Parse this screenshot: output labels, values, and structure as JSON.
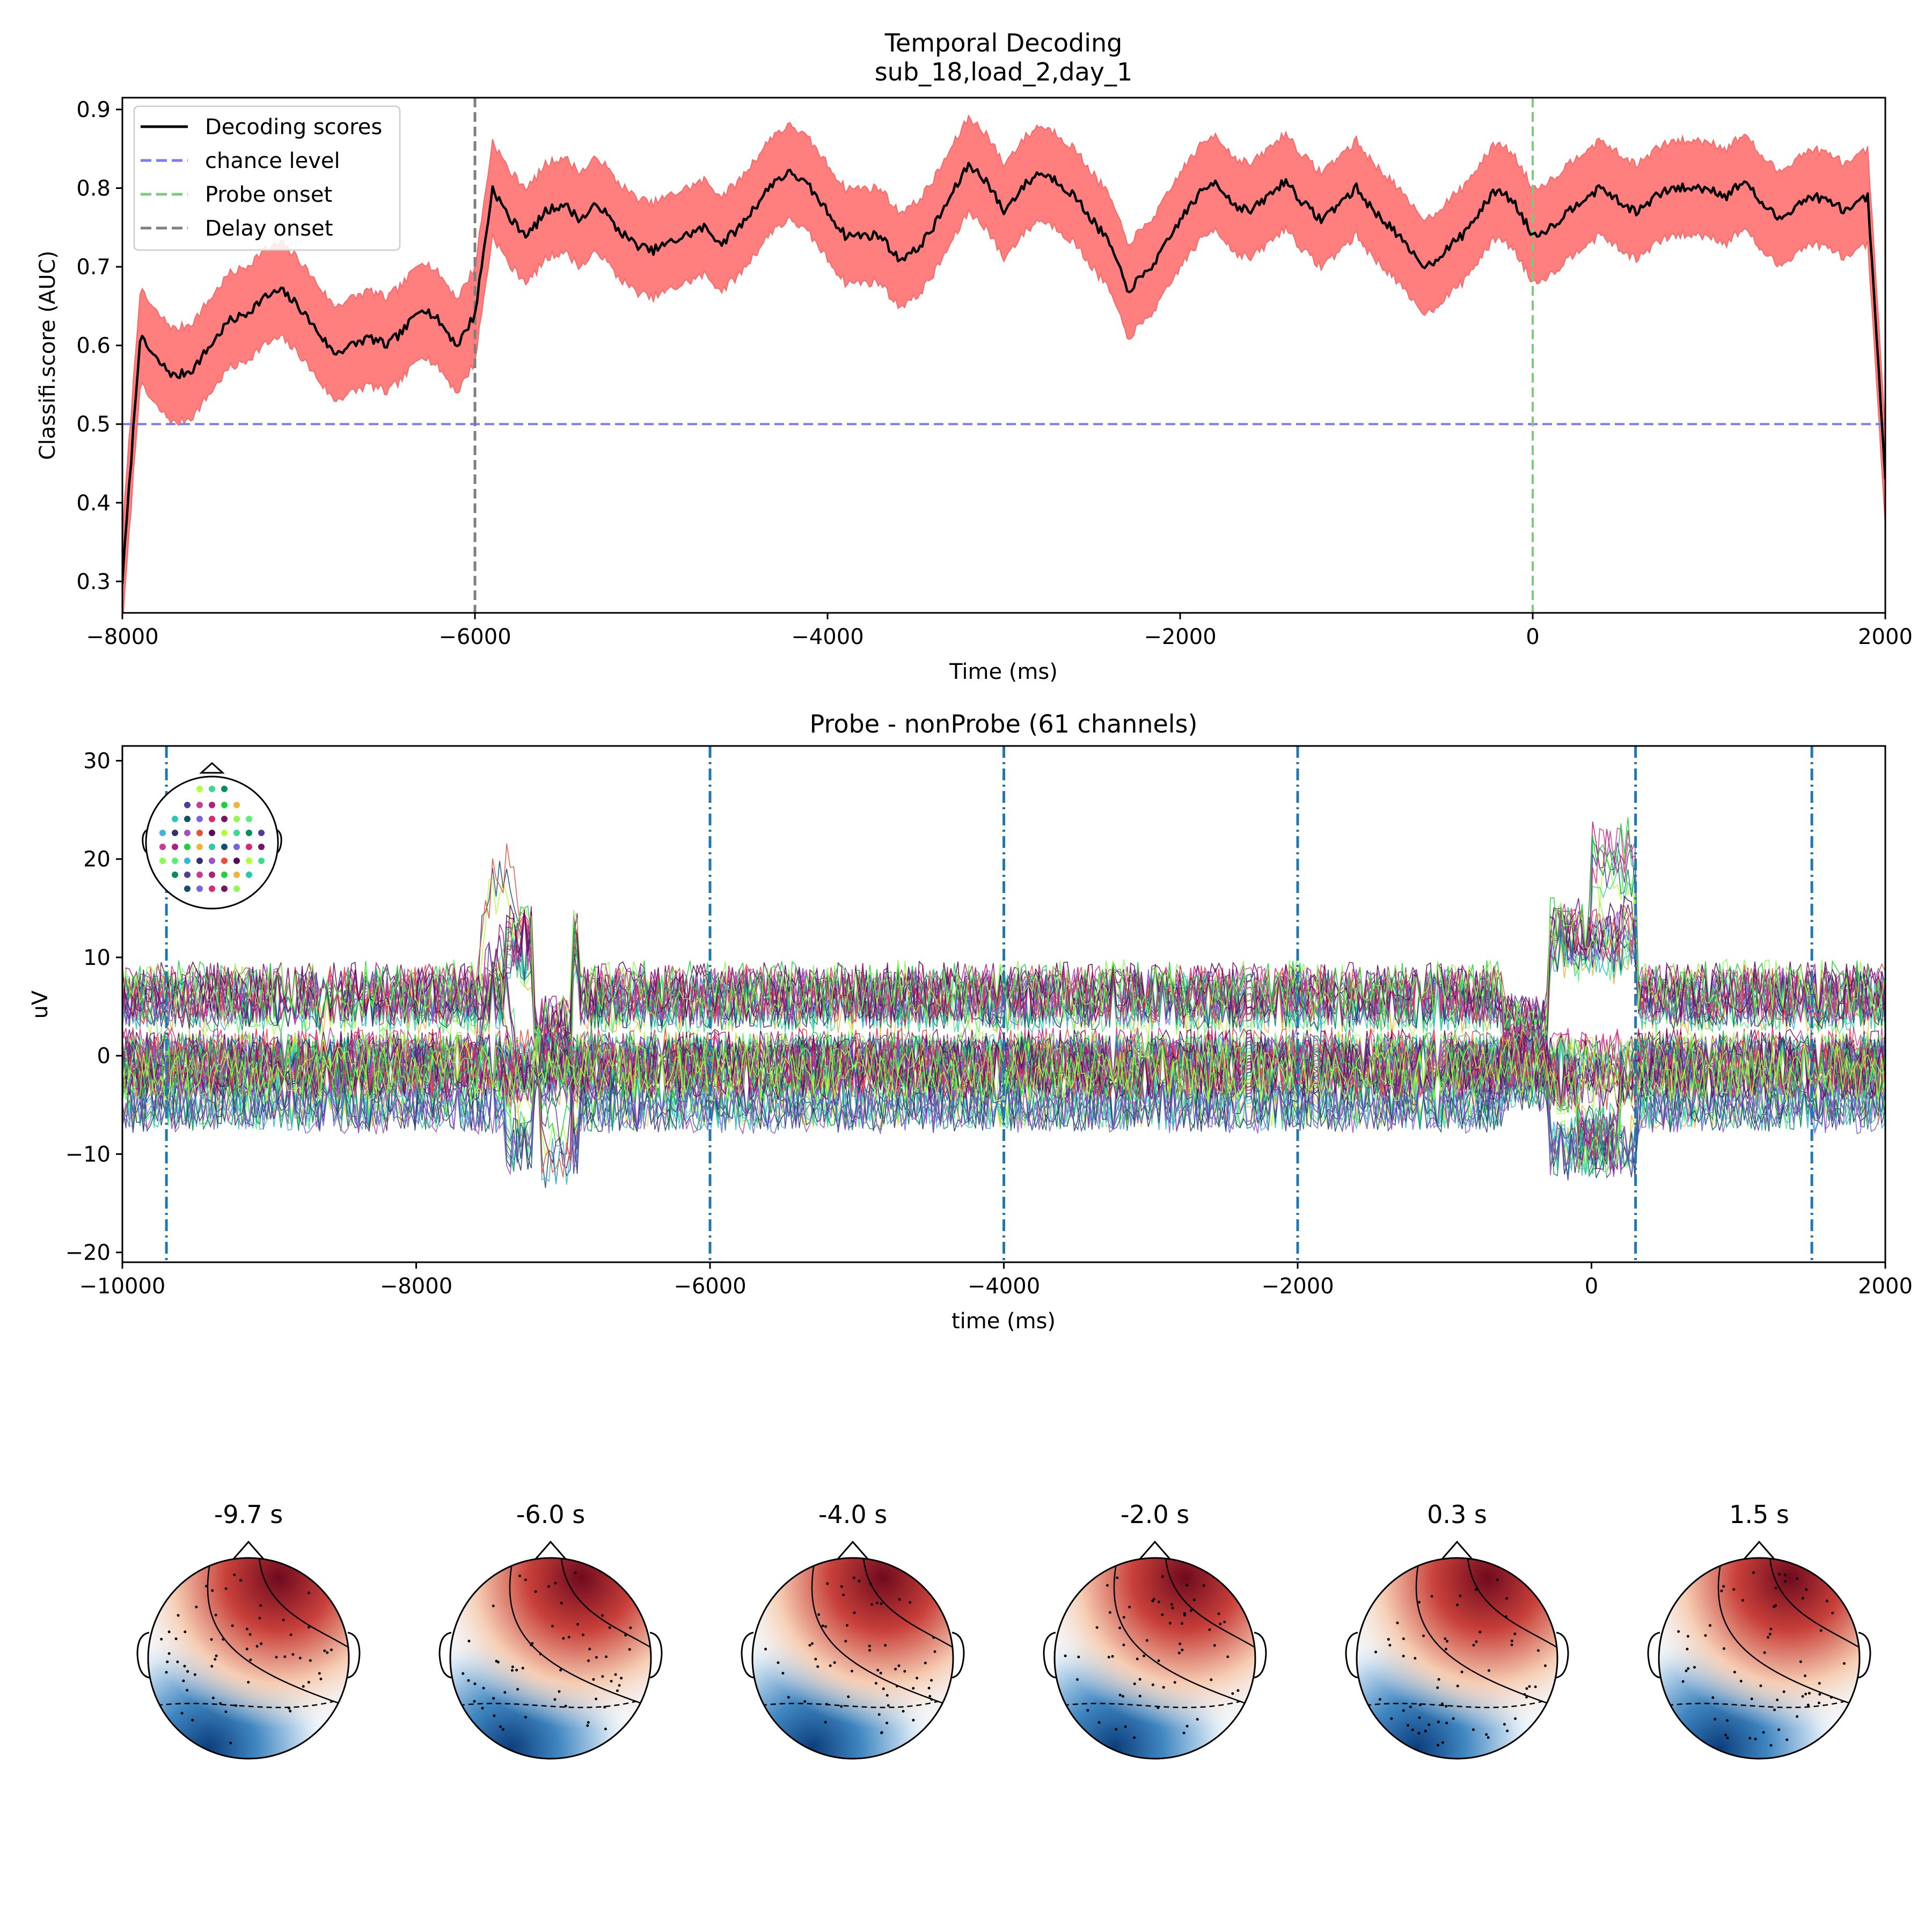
{
  "chart_data": [
    {
      "type": "line",
      "title": "Temporal Decoding",
      "subtitle": "sub_18,load_2,day_1",
      "xlabel": "Time (ms)",
      "ylabel": "Classifi.score (AUC)",
      "xlim": [
        -8000,
        2000
      ],
      "ylim": [
        0.26,
        0.915
      ],
      "xticks": [
        -8000,
        -6000,
        -4000,
        -2000,
        0,
        2000
      ],
      "xtick_labels": [
        "−8000",
        "−6000",
        "−4000",
        "−2000",
        "0",
        "2000"
      ],
      "yticks": [
        0.3,
        0.4,
        0.5,
        0.6,
        0.7,
        0.8,
        0.9
      ],
      "ytick_labels": [
        "0.3",
        "0.4",
        "0.5",
        "0.6",
        "0.7",
        "0.8",
        "0.9"
      ],
      "grid": false,
      "legend_placement": "top-left",
      "legend": [
        {
          "label": "Decoding scores",
          "color": "#000000",
          "style": "solid"
        },
        {
          "label": "chance level",
          "color": "#7b7bf5",
          "style": "dashed"
        },
        {
          "label": "Probe onset",
          "color": "#7fc97f",
          "style": "dashed"
        },
        {
          "label": "Delay onset",
          "color": "#7f7f7f",
          "style": "dashed"
        }
      ],
      "band_color": "#ff7f7f",
      "band_halfwidth": 0.06,
      "chance_level": 0.5,
      "probe_onset": 0,
      "delay_onset": -6000,
      "series": [
        {
          "name": "Decoding scores",
          "x": [
            -8000,
            -7900,
            -7800,
            -7700,
            -7600,
            -7500,
            -7400,
            -7300,
            -7200,
            -7100,
            -7000,
            -6900,
            -6800,
            -6700,
            -6600,
            -6500,
            -6400,
            -6300,
            -6200,
            -6100,
            -6000,
            -5900,
            -5800,
            -5700,
            -5600,
            -5500,
            -5400,
            -5300,
            -5200,
            -5100,
            -5000,
            -4900,
            -4800,
            -4700,
            -4600,
            -4500,
            -4400,
            -4300,
            -4200,
            -4100,
            -4000,
            -3900,
            -3800,
            -3700,
            -3600,
            -3500,
            -3400,
            -3300,
            -3200,
            -3100,
            -3000,
            -2900,
            -2800,
            -2700,
            -2600,
            -2500,
            -2400,
            -2300,
            -2200,
            -2100,
            -2000,
            -1900,
            -1800,
            -1700,
            -1600,
            -1500,
            -1400,
            -1300,
            -1200,
            -1100,
            -1000,
            -900,
            -800,
            -700,
            -600,
            -500,
            -400,
            -300,
            -200,
            -100,
            0,
            100,
            200,
            300,
            400,
            500,
            600,
            700,
            800,
            900,
            1000,
            1100,
            1200,
            1300,
            1400,
            1500,
            1600,
            1700,
            1800,
            1900,
            2000
          ],
          "y": [
            0.3,
            0.61,
            0.58,
            0.56,
            0.57,
            0.6,
            0.63,
            0.64,
            0.66,
            0.67,
            0.65,
            0.62,
            0.59,
            0.6,
            0.61,
            0.6,
            0.62,
            0.65,
            0.63,
            0.6,
            0.64,
            0.8,
            0.76,
            0.74,
            0.77,
            0.78,
            0.76,
            0.78,
            0.75,
            0.73,
            0.72,
            0.73,
            0.74,
            0.75,
            0.73,
            0.75,
            0.78,
            0.81,
            0.82,
            0.8,
            0.77,
            0.74,
            0.74,
            0.74,
            0.71,
            0.72,
            0.75,
            0.79,
            0.83,
            0.81,
            0.77,
            0.8,
            0.82,
            0.81,
            0.79,
            0.76,
            0.73,
            0.67,
            0.69,
            0.72,
            0.76,
            0.79,
            0.81,
            0.78,
            0.77,
            0.79,
            0.81,
            0.78,
            0.76,
            0.78,
            0.8,
            0.77,
            0.75,
            0.72,
            0.7,
            0.72,
            0.74,
            0.77,
            0.8,
            0.78,
            0.74,
            0.75,
            0.77,
            0.79,
            0.8,
            0.78,
            0.77,
            0.79,
            0.8,
            0.8,
            0.8,
            0.79,
            0.81,
            0.78,
            0.76,
            0.78,
            0.79,
            0.78,
            0.77,
            0.79,
            0.43
          ]
        }
      ]
    },
    {
      "type": "line",
      "title": "Probe - nonProbe (61 channels)",
      "xlabel": "time (ms)",
      "ylabel": "uV",
      "xlim": [
        -10000,
        2000
      ],
      "ylim": [
        -21,
        31.5
      ],
      "xticks": [
        -10000,
        -8000,
        -6000,
        -4000,
        -2000,
        0,
        2000
      ],
      "xtick_labels": [
        "−10000",
        "−8000",
        "−6000",
        "−4000",
        "−2000",
        "0",
        "2000"
      ],
      "yticks": [
        -20,
        -10,
        0,
        10,
        20,
        30
      ],
      "ytick_labels": [
        "−20",
        "−10",
        "0",
        "10",
        "20",
        "30"
      ],
      "grid": false,
      "channel_count": 61,
      "topomap_times_ms": [
        -9700,
        -6000,
        -4000,
        -2000,
        300,
        1500
      ],
      "topomap_marker_color": "#1f77b4",
      "channel_colors": [
        "#b4ff3c",
        "#f0b43c",
        "#5af078",
        "#3cdc8c",
        "#28c8b4",
        "#3cb4dc",
        "#0a8c5a",
        "#14506e",
        "#32326e",
        "#503ca0",
        "#7864dc",
        "#a050c8",
        "#c83c96",
        "#dc286e",
        "#e6503c",
        "#b41e78",
        "#781464",
        "#5a0a5a",
        "#1ed23c",
        "#8cfa50"
      ]
    },
    {
      "type": "heatmap",
      "topomap_titles": [
        "-9.7 s",
        "-6.0 s",
        "-4.0 s",
        "-2.0 s",
        "0.3 s",
        "1.5 s"
      ],
      "colormap": "RdBu_r",
      "color_low": "#1f5fa6",
      "color_high": "#7a0a1e"
    }
  ]
}
